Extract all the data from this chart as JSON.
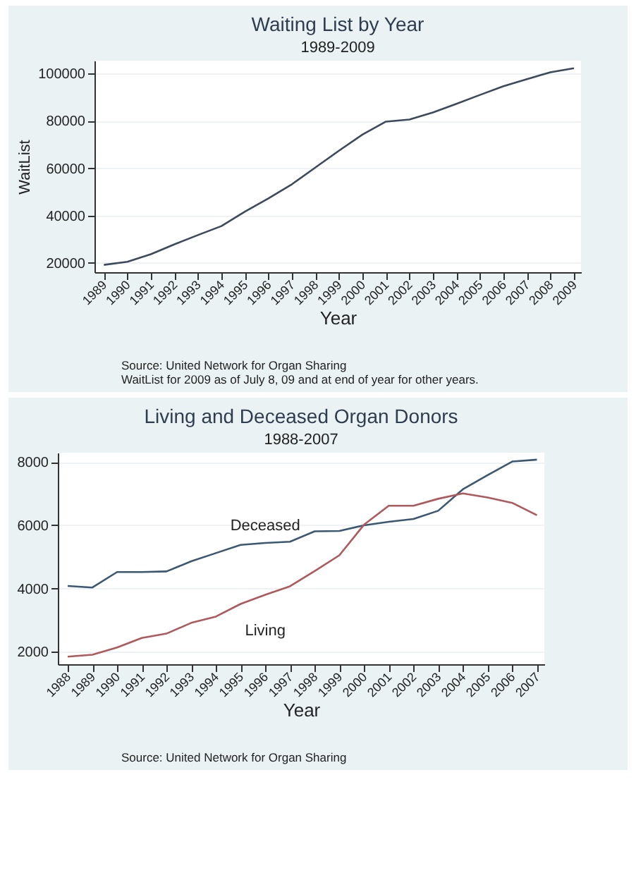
{
  "chart_data": [
    {
      "type": "line",
      "title": "Waiting List by Year",
      "subtitle": "1989-2009",
      "xlabel": "Year",
      "ylabel": "WaitList",
      "x": [
        1989,
        1990,
        1991,
        1992,
        1993,
        1994,
        1995,
        1996,
        1997,
        1998,
        1999,
        2000,
        2001,
        2002,
        2003,
        2004,
        2005,
        2006,
        2007,
        2008,
        2009
      ],
      "series": [
        {
          "color": "#3c4a5c",
          "values": [
            19100,
            20400,
            23600,
            27800,
            31700,
            35500,
            41600,
            47200,
            53200,
            60300,
            67400,
            74200,
            79700,
            80600,
            83600,
            87200,
            91000,
            94700,
            97700,
            100600,
            102300
          ]
        }
      ],
      "xlim": [
        1988.6,
        2009.3
      ],
      "xticks": [
        1989,
        1990,
        1991,
        1992,
        1993,
        1994,
        1995,
        1996,
        1997,
        1998,
        1999,
        2000,
        2001,
        2002,
        2003,
        2004,
        2005,
        2006,
        2007,
        2008,
        2009
      ],
      "ylim": [
        16000,
        105500
      ],
      "yticks": [
        20000,
        40000,
        60000,
        80000,
        100000
      ],
      "grid": "y",
      "annotations": [
        "Source: United Network for Organ Sharing",
        "WaitList for 2009 as of July 8, 09 and at end of year for other years."
      ]
    },
    {
      "type": "line",
      "title": "Living and Deceased Organ Donors",
      "subtitle": "1988-2007",
      "xlabel": "Year",
      "x": [
        1988,
        1989,
        1990,
        1991,
        1992,
        1993,
        1994,
        1995,
        1996,
        1997,
        1998,
        1999,
        2000,
        2001,
        2002,
        2003,
        2004,
        2005,
        2006,
        2007
      ],
      "series": [
        {
          "name": "Deceased",
          "color": "#3b5872",
          "values": [
            4080,
            4030,
            4520,
            4520,
            4540,
            4860,
            5120,
            5380,
            5440,
            5480,
            5810,
            5820,
            6000,
            6110,
            6200,
            6460,
            7140,
            7590,
            8020,
            8080
          ]
        },
        {
          "name": "Living",
          "color": "#b0585c",
          "values": [
            1840,
            1900,
            2130,
            2430,
            2570,
            2910,
            3110,
            3510,
            3800,
            4070,
            4550,
            5050,
            6020,
            6620,
            6620,
            6840,
            7010,
            6880,
            6710,
            6320
          ]
        }
      ],
      "xlim": [
        1987.6,
        2007.3
      ],
      "xticks": [
        1988,
        1989,
        1990,
        1991,
        1992,
        1993,
        1994,
        1995,
        1996,
        1997,
        1998,
        1999,
        2000,
        2001,
        2002,
        2003,
        2004,
        2005,
        2006,
        2007
      ],
      "ylim": [
        1600,
        8300
      ],
      "yticks": [
        2000,
        4000,
        6000,
        8000
      ],
      "grid": "y",
      "annotations": [
        "Source: United Network for Organ Sharing"
      ]
    }
  ]
}
